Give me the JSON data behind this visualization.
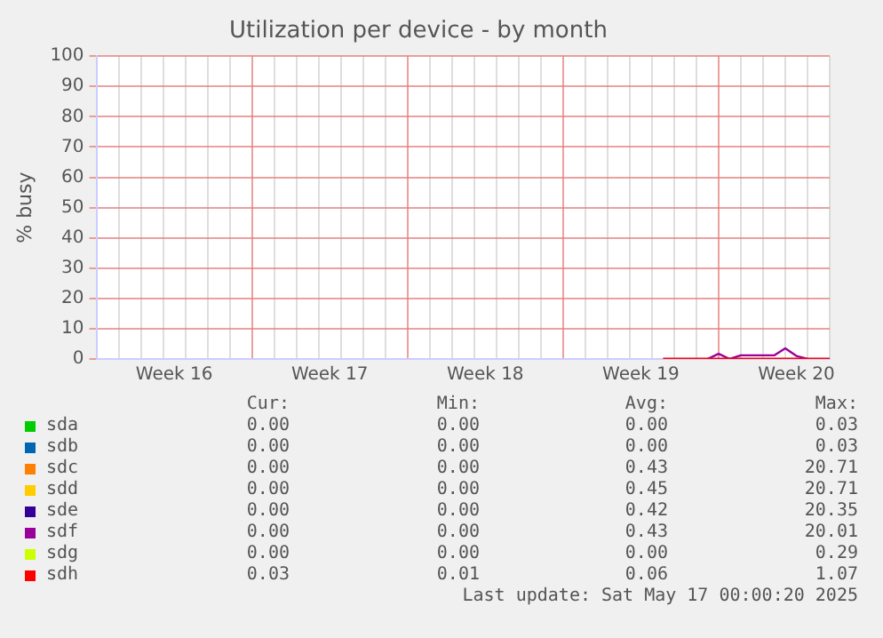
{
  "chart_data": {
    "type": "line",
    "title": "Utilization per device - by month",
    "ylabel": "% busy",
    "categories": [
      null,
      null,
      null,
      null,
      null,
      null,
      null,
      "Week 16",
      null,
      null,
      null,
      null,
      null,
      null,
      null,
      null,
      null,
      null,
      null,
      null,
      null,
      "Week 17",
      null,
      null,
      null,
      null,
      null,
      null,
      null,
      null,
      null,
      null,
      null,
      null,
      null,
      "Week 18",
      null,
      null,
      null,
      null,
      null,
      null,
      null,
      null,
      null,
      null,
      null,
      null,
      null,
      "Week 19",
      null,
      null,
      null,
      null,
      null,
      null,
      null,
      null,
      null,
      null,
      null,
      null,
      null,
      "Week 20",
      null,
      null,
      null
    ],
    "ylim": [
      0,
      100
    ],
    "yticks": [
      0,
      10,
      20,
      30,
      40,
      50,
      60,
      70,
      80,
      90,
      100
    ],
    "series": [
      {
        "name": "sda",
        "color": "#00cc00",
        "values": [
          null,
          null,
          null,
          null,
          null,
          null,
          null,
          null,
          null,
          null,
          null,
          null,
          null,
          null,
          null,
          null,
          null,
          null,
          null,
          null,
          null,
          null,
          null,
          null,
          null,
          null,
          null,
          null,
          null,
          null,
          null,
          null,
          null,
          null,
          null,
          null,
          null,
          null,
          null,
          null,
          null,
          null,
          null,
          null,
          null,
          null,
          null,
          null,
          null,
          null,
          null,
          null,
          null,
          null,
          null,
          null,
          null,
          null,
          null,
          null,
          null,
          null,
          null,
          null,
          null,
          null,
          null
        ]
      },
      {
        "name": "sdb",
        "color": "#0066b3",
        "values": [
          null,
          null,
          null,
          null,
          null,
          null,
          null,
          null,
          null,
          null,
          null,
          null,
          null,
          null,
          null,
          null,
          null,
          null,
          null,
          null,
          null,
          null,
          null,
          null,
          null,
          null,
          null,
          null,
          null,
          null,
          null,
          null,
          null,
          null,
          null,
          null,
          null,
          null,
          null,
          null,
          null,
          null,
          null,
          null,
          null,
          null,
          null,
          null,
          null,
          null,
          null,
          null,
          null,
          null,
          null,
          null,
          null,
          null,
          null,
          null,
          null,
          null,
          null,
          null,
          null,
          null,
          null
        ]
      },
      {
        "name": "sdc",
        "color": "#ff8000",
        "values": [
          null,
          null,
          null,
          null,
          null,
          null,
          null,
          null,
          null,
          null,
          null,
          null,
          null,
          null,
          null,
          null,
          null,
          null,
          null,
          null,
          null,
          null,
          null,
          null,
          null,
          null,
          null,
          null,
          null,
          null,
          null,
          null,
          null,
          null,
          null,
          null,
          null,
          null,
          null,
          null,
          null,
          null,
          null,
          null,
          null,
          null,
          null,
          null,
          null,
          null,
          null,
          null,
          null,
          null,
          null,
          null,
          null,
          null,
          null,
          null,
          null,
          null,
          null,
          null,
          null,
          null,
          null
        ]
      },
      {
        "name": "sdd",
        "color": "#ffcc00",
        "values": [
          null,
          null,
          null,
          null,
          null,
          null,
          null,
          null,
          null,
          null,
          null,
          null,
          null,
          null,
          null,
          null,
          null,
          null,
          null,
          null,
          null,
          null,
          null,
          null,
          null,
          null,
          null,
          null,
          null,
          null,
          null,
          null,
          null,
          null,
          null,
          null,
          null,
          null,
          null,
          null,
          null,
          null,
          null,
          null,
          null,
          null,
          null,
          null,
          null,
          null,
          null,
          null,
          null,
          null,
          null,
          null,
          null,
          null,
          null,
          null,
          null,
          null,
          null,
          null,
          null,
          null,
          null
        ]
      },
      {
        "name": "sde",
        "color": "#330099",
        "values": [
          null,
          null,
          null,
          null,
          null,
          null,
          null,
          null,
          null,
          null,
          null,
          null,
          null,
          null,
          null,
          null,
          null,
          null,
          null,
          null,
          null,
          null,
          null,
          null,
          null,
          null,
          null,
          null,
          null,
          null,
          null,
          null,
          null,
          null,
          null,
          null,
          null,
          null,
          null,
          null,
          null,
          null,
          null,
          null,
          null,
          null,
          null,
          null,
          null,
          null,
          null,
          null,
          null,
          null,
          null,
          null,
          null,
          null,
          null,
          null,
          null,
          null,
          null,
          null,
          null,
          null,
          null
        ]
      },
      {
        "name": "sdf",
        "color": "#990099",
        "values": [
          null,
          null,
          null,
          null,
          null,
          null,
          null,
          null,
          null,
          null,
          null,
          null,
          null,
          null,
          null,
          null,
          null,
          null,
          null,
          null,
          null,
          null,
          null,
          null,
          null,
          null,
          null,
          null,
          null,
          null,
          null,
          null,
          null,
          null,
          null,
          null,
          null,
          null,
          null,
          null,
          null,
          null,
          null,
          null,
          null,
          null,
          null,
          null,
          null,
          null,
          null,
          null,
          null,
          null,
          null,
          0,
          1.7,
          0,
          1.2,
          1.2,
          1.2,
          1.2,
          3.5,
          1,
          0,
          null,
          null
        ]
      },
      {
        "name": "sdg",
        "color": "#ccff00",
        "values": [
          null,
          null,
          null,
          null,
          null,
          null,
          null,
          null,
          null,
          null,
          null,
          null,
          null,
          null,
          null,
          null,
          null,
          null,
          null,
          null,
          null,
          null,
          null,
          null,
          null,
          null,
          null,
          null,
          null,
          null,
          null,
          null,
          null,
          null,
          null,
          null,
          null,
          null,
          null,
          null,
          null,
          null,
          null,
          null,
          null,
          null,
          null,
          null,
          null,
          null,
          null,
          null,
          null,
          null,
          null,
          null,
          null,
          null,
          null,
          null,
          null,
          null,
          null,
          null,
          null,
          null,
          null
        ]
      },
      {
        "name": "sdh",
        "color": "#ff0000",
        "values": [
          null,
          null,
          null,
          null,
          null,
          null,
          null,
          null,
          null,
          null,
          null,
          null,
          null,
          null,
          null,
          null,
          null,
          null,
          null,
          null,
          null,
          null,
          null,
          null,
          null,
          null,
          null,
          null,
          null,
          null,
          null,
          null,
          null,
          null,
          null,
          null,
          null,
          null,
          null,
          null,
          null,
          null,
          null,
          null,
          null,
          null,
          null,
          null,
          null,
          null,
          null,
          0.1,
          0.1,
          0.1,
          0.1,
          0.1,
          0.1,
          0.1,
          0.1,
          0.1,
          0.1,
          0.1,
          0.1,
          0.1,
          0.1,
          0.1,
          0.1
        ]
      }
    ],
    "grid": true,
    "legend": "bottom",
    "marker": "none",
    "line_style": "solid",
    "annotations": [
      "Cur:",
      "Min:",
      "Avg:",
      "Max:",
      "0.00",
      "0.00",
      "0.00",
      "0.03",
      "0.00",
      "0.00",
      "0.00",
      "0.03",
      "0.00",
      "0.00",
      "0.43",
      "20.71",
      "0.00",
      "0.00",
      "0.45",
      "20.71",
      "0.00",
      "0.00",
      "0.42",
      "20.35",
      "0.00",
      "0.00",
      "0.43",
      "20.01",
      "0.00",
      "0.00",
      "0.00",
      "0.29",
      "0.03",
      "0.01",
      "0.06",
      "1.07",
      "Last update: Sat May 17 00:00:20 2025"
    ]
  }
}
